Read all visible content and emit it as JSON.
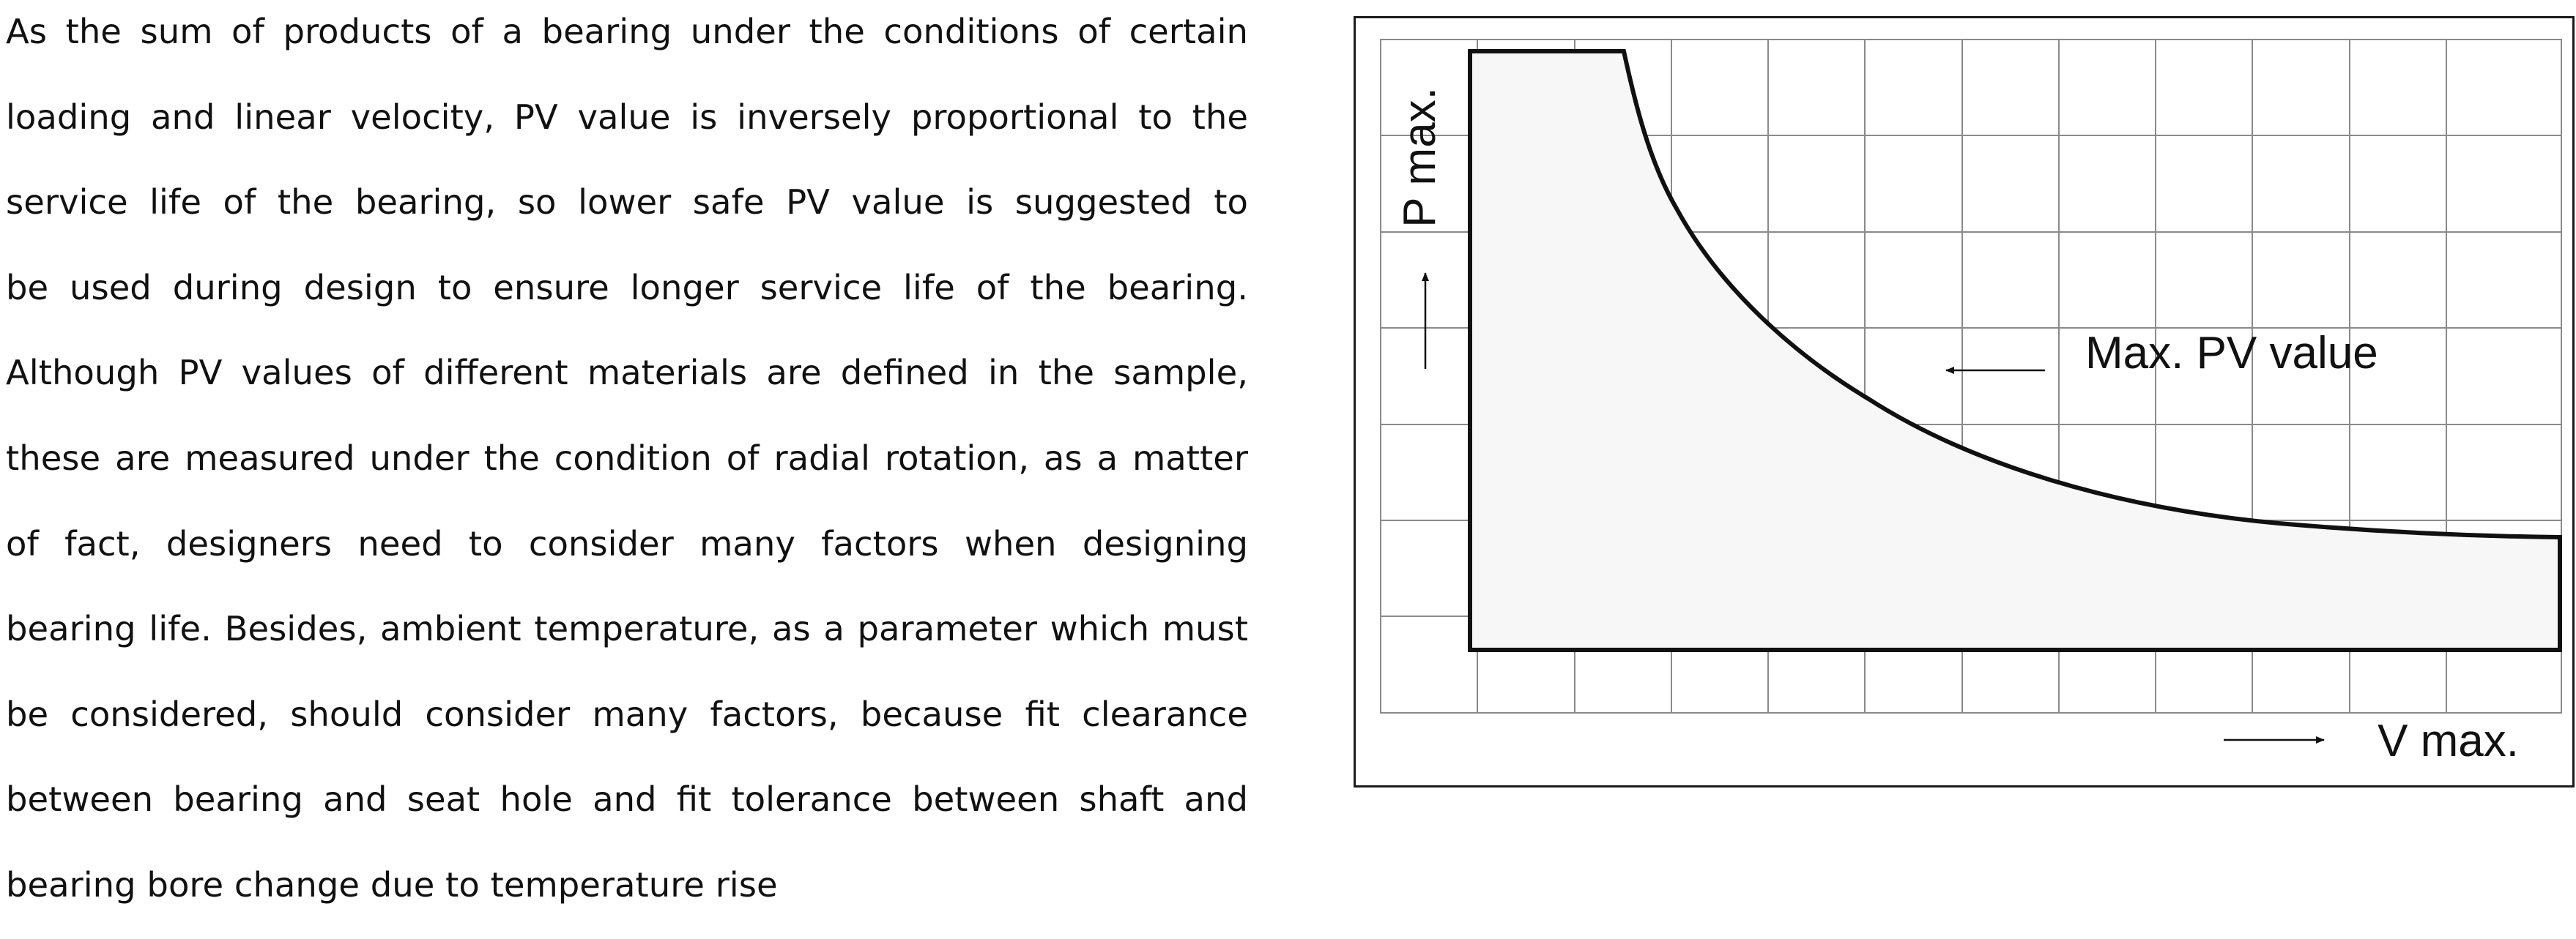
{
  "document": {
    "paragraph_lines": [
      "As the sum of products of a bearing under the conditions of certain",
      "loading and linear velocity, PV value is inversely proportional to the",
      "service life of the bearing, so lower safe PV value is suggested to",
      "be used during design to ensure longer service life of the bearing.",
      "Although PV values of different materials are defined in the sample,",
      "these are measured under the condition of radial rotation, as a matter",
      "of fact, designers need to consider many factors when designing",
      "bearing life. Besides, ambient temperature, as a parameter which must",
      "be considered, should consider many factors, because fit clearance",
      "between bearing and seat hole and fit tolerance between shaft and",
      "bearing bore change due to temperature rise"
    ]
  },
  "figure": {
    "y_axis_label": "P max.",
    "x_axis_label": "V max.",
    "curve_label": "Max. PV value",
    "colors": {
      "region_fill": "#f6f7f6",
      "grid": "#8a8a8a",
      "outline": "#111111"
    }
  }
}
